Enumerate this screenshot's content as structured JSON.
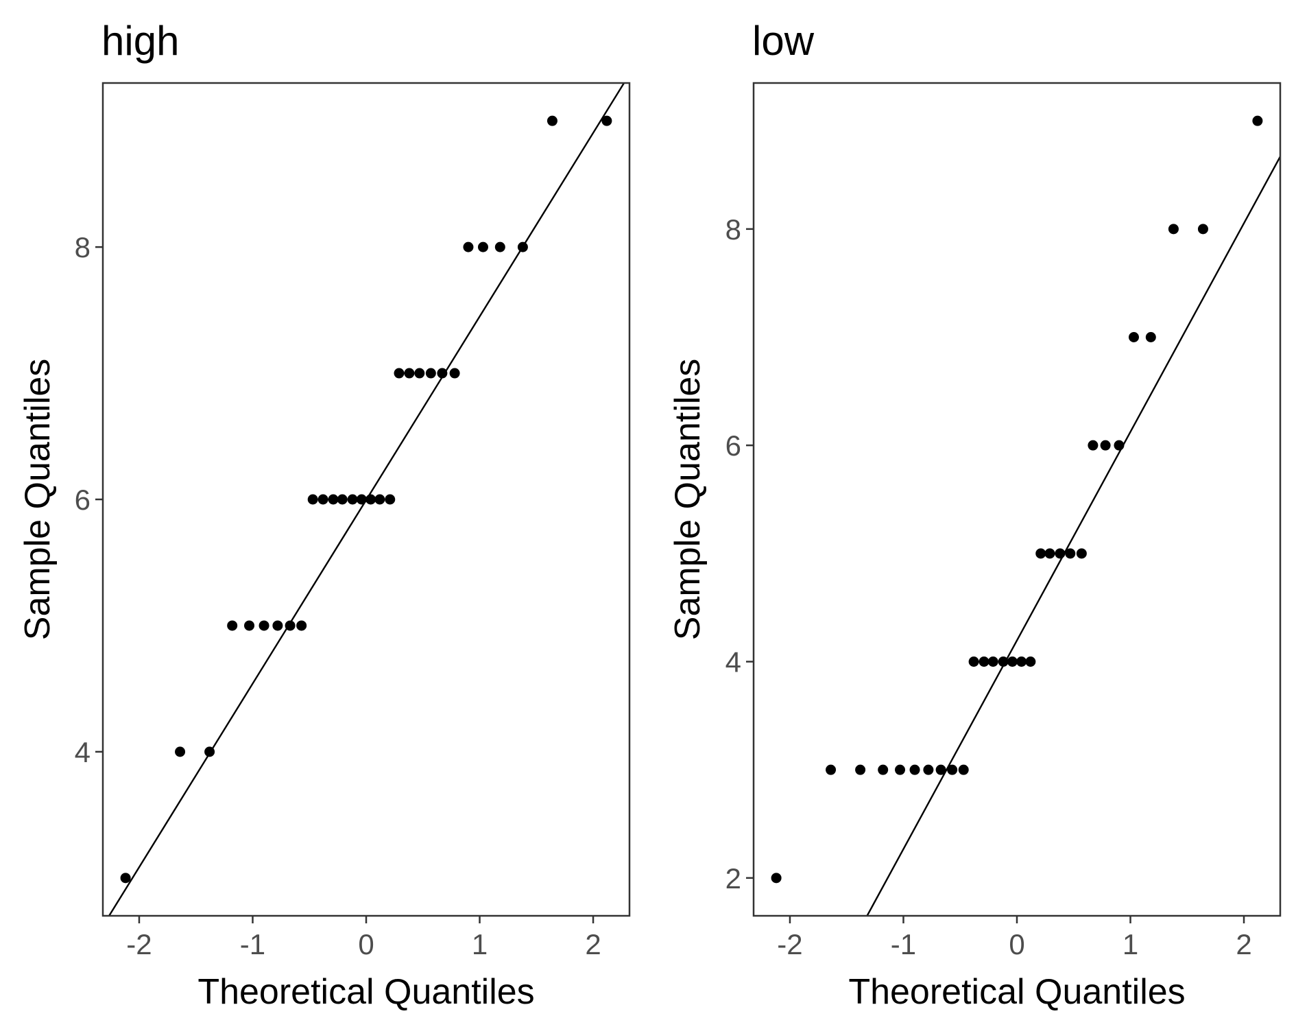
{
  "chart_data": [
    {
      "type": "scatter",
      "title": "high",
      "xlabel": "Theoretical Quantiles",
      "ylabel": "Sample Quantiles",
      "xlim": [
        -2.32,
        2.32
      ],
      "ylim": [
        2.7,
        9.3
      ],
      "xticks": [
        -2,
        -1,
        0,
        1,
        2
      ],
      "xtick_labels": [
        "-2",
        "-1",
        "0",
        "1",
        "2"
      ],
      "yticks": [
        4,
        6,
        8
      ],
      "ytick_labels": [
        "4",
        "6",
        "8"
      ],
      "grid": false,
      "legend": "none",
      "points": {
        "x": [
          -2.12,
          -1.64,
          -1.38,
          -1.18,
          -1.03,
          -0.9,
          -0.78,
          -0.67,
          -0.57,
          -0.47,
          -0.38,
          -0.29,
          -0.21,
          -0.12,
          -0.04,
          0.04,
          0.12,
          0.21,
          0.29,
          0.38,
          0.47,
          0.57,
          0.67,
          0.78,
          0.9,
          1.03,
          1.18,
          1.38,
          1.64,
          2.12
        ],
        "y": [
          3,
          4,
          4,
          5,
          5,
          5,
          5,
          5,
          5,
          6,
          6,
          6,
          6,
          6,
          6,
          6,
          6,
          6,
          7,
          7,
          7,
          7,
          7,
          7,
          8,
          8,
          8,
          8,
          9,
          9
        ]
      },
      "reference_line": {
        "x": [
          -2.32,
          2.32
        ],
        "y": [
          2.62,
          9.37
        ]
      }
    },
    {
      "type": "scatter",
      "title": "low",
      "xlabel": "Theoretical Quantiles",
      "ylabel": "Sample Quantiles",
      "xlim": [
        -2.32,
        2.32
      ],
      "ylim": [
        1.65,
        9.35
      ],
      "xticks": [
        -2,
        -1,
        0,
        1,
        2
      ],
      "xtick_labels": [
        "-2",
        "-1",
        "0",
        "1",
        "2"
      ],
      "yticks": [
        2,
        4,
        6,
        8
      ],
      "ytick_labels": [
        "2",
        "4",
        "6",
        "8"
      ],
      "grid": false,
      "legend": "none",
      "points": {
        "x": [
          -2.12,
          -1.64,
          -1.38,
          -1.18,
          -1.03,
          -0.9,
          -0.78,
          -0.67,
          -0.57,
          -0.47,
          -0.38,
          -0.29,
          -0.21,
          -0.12,
          -0.04,
          0.04,
          0.12,
          0.21,
          0.29,
          0.38,
          0.47,
          0.57,
          0.67,
          0.78,
          0.9,
          1.03,
          1.18,
          1.38,
          1.64,
          2.12
        ],
        "y": [
          2,
          3,
          3,
          3,
          3,
          3,
          3,
          3,
          3,
          3,
          4,
          4,
          4,
          4,
          4,
          4,
          4,
          5,
          5,
          5,
          5,
          5,
          6,
          6,
          6,
          7,
          7,
          8,
          8,
          9
        ]
      },
      "reference_line": {
        "x": [
          -1.32,
          2.32
        ],
        "y": [
          1.65,
          8.67
        ]
      }
    }
  ]
}
